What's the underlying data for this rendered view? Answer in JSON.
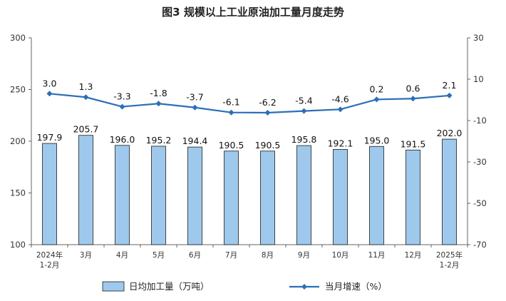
{
  "chart_data": {
    "type": "bar+line",
    "title": "图3  规模以上工业原油加工量月度走势",
    "categories": [
      [
        "2024年",
        "1-2月"
      ],
      [
        "3月"
      ],
      [
        "4月"
      ],
      [
        "5月"
      ],
      [
        "6月"
      ],
      [
        "7月"
      ],
      [
        "8月"
      ],
      [
        "9月"
      ],
      [
        "10月"
      ],
      [
        "11月"
      ],
      [
        "12月"
      ],
      [
        "2025年",
        "1-2月"
      ]
    ],
    "series": [
      {
        "name": "日均加工量（万吨）",
        "type": "bar",
        "axis": "left",
        "color": "#9ec9ec",
        "values": [
          197.9,
          205.7,
          196.0,
          195.2,
          194.4,
          190.5,
          190.5,
          195.8,
          192.1,
          195.0,
          191.5,
          202.0
        ],
        "labels": [
          "197.9",
          "205.7",
          "196.0",
          "195.2",
          "194.4",
          "190.5",
          "190.5",
          "195.8",
          "192.1",
          "195.0",
          "191.5",
          "202.0"
        ]
      },
      {
        "name": "当月增速（%）",
        "type": "line",
        "axis": "right",
        "color": "#2a6fb8",
        "values": [
          3.0,
          1.3,
          -3.3,
          -1.8,
          -3.7,
          -6.1,
          -6.2,
          -5.4,
          -4.6,
          0.2,
          0.6,
          2.1
        ],
        "labels": [
          "3.0",
          "1.3",
          "-3.3",
          "-1.8",
          "-3.7",
          "-6.1",
          "-6.2",
          "-5.4",
          "-4.6",
          "0.2",
          "0.6",
          "2.1"
        ]
      }
    ],
    "y_left": {
      "min": 100,
      "max": 300,
      "ticks": [
        100,
        150,
        200,
        250,
        300
      ]
    },
    "y_right": {
      "min": -70,
      "max": 30,
      "ticks": [
        -70,
        -50,
        -30,
        -10,
        10,
        30
      ]
    },
    "legend_position": "bottom",
    "grid": false
  }
}
